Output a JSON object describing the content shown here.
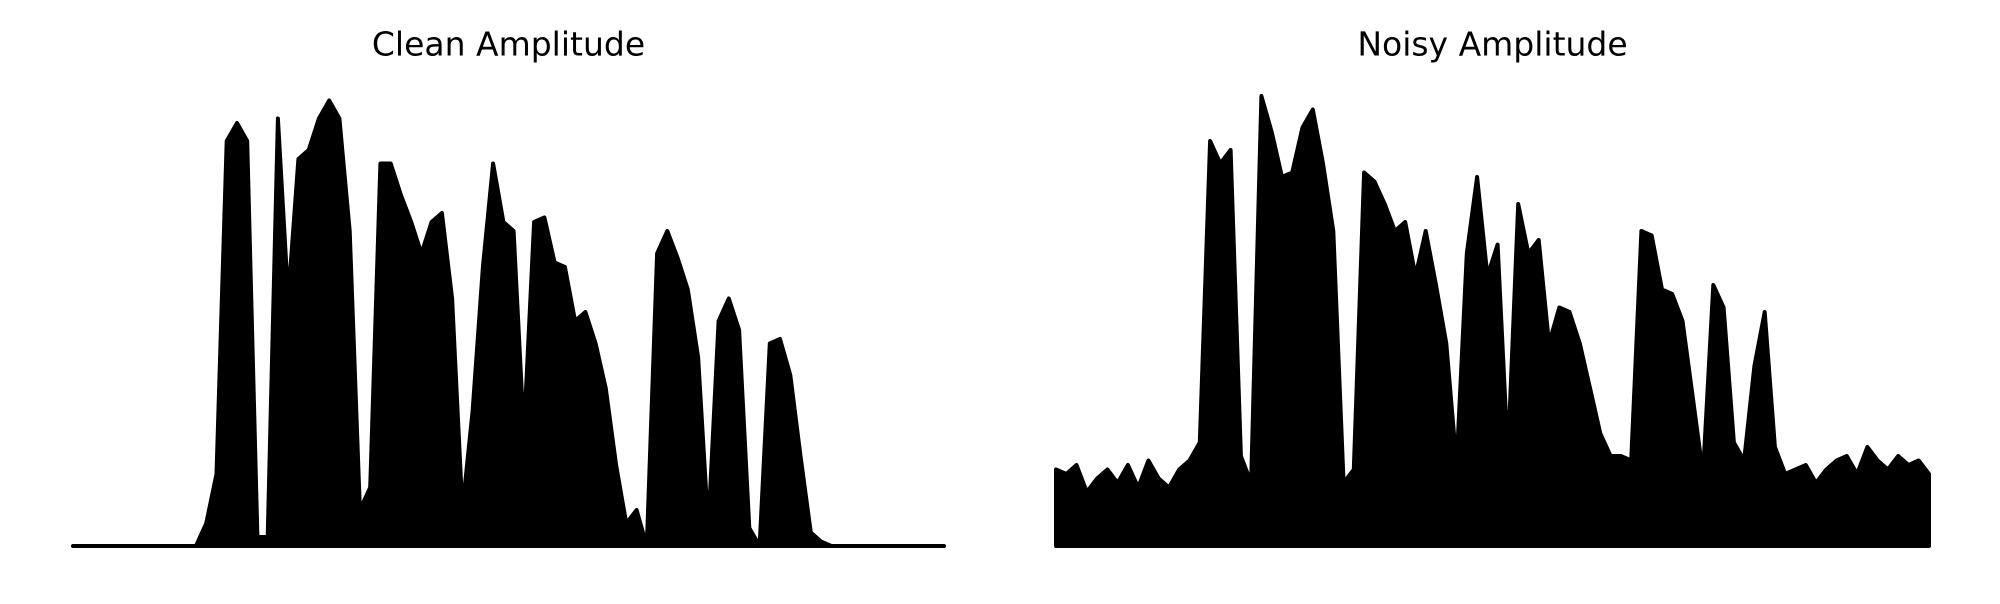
{
  "chart_data": [
    {
      "type": "area",
      "title": "Clean Amplitude",
      "color": "#000000",
      "ylim": [
        0,
        1
      ],
      "values": [
        0,
        0,
        0,
        0,
        0,
        0,
        0,
        0,
        0,
        0,
        0,
        0,
        0,
        0.05,
        0.16,
        0.9,
        0.94,
        0.9,
        0.02,
        0.02,
        0.95,
        0.55,
        0.86,
        0.88,
        0.95,
        0.99,
        0.95,
        0.7,
        0.08,
        0.13,
        0.85,
        0.85,
        0.78,
        0.72,
        0.65,
        0.72,
        0.74,
        0.55,
        0.08,
        0.3,
        0.62,
        0.85,
        0.72,
        0.7,
        0.25,
        0.72,
        0.73,
        0.63,
        0.62,
        0.5,
        0.52,
        0.45,
        0.35,
        0.18,
        0.05,
        0.08,
        0,
        0.65,
        0.7,
        0.64,
        0.57,
        0.42,
        0.04,
        0.5,
        0.55,
        0.48,
        0.04,
        0,
        0.45,
        0.46,
        0.38,
        0.2,
        0.03,
        0.01,
        0,
        0,
        0,
        0,
        0,
        0,
        0,
        0,
        0,
        0,
        0,
        0
      ]
    },
    {
      "type": "area",
      "title": "Noisy Amplitude",
      "color": "#000000",
      "ylim": [
        0,
        1
      ],
      "values": [
        0.17,
        0.16,
        0.18,
        0.12,
        0.15,
        0.17,
        0.14,
        0.18,
        0.13,
        0.19,
        0.15,
        0.13,
        0.17,
        0.19,
        0.23,
        0.9,
        0.85,
        0.88,
        0.2,
        0.14,
        1.0,
        0.92,
        0.82,
        0.83,
        0.93,
        0.97,
        0.85,
        0.7,
        0.14,
        0.17,
        0.83,
        0.81,
        0.76,
        0.7,
        0.72,
        0.6,
        0.7,
        0.58,
        0.45,
        0.18,
        0.65,
        0.82,
        0.6,
        0.67,
        0.2,
        0.76,
        0.65,
        0.68,
        0.45,
        0.53,
        0.52,
        0.45,
        0.35,
        0.25,
        0.2,
        0.2,
        0.19,
        0.7,
        0.69,
        0.57,
        0.56,
        0.5,
        0.33,
        0.16,
        0.58,
        0.53,
        0.23,
        0.19,
        0.4,
        0.52,
        0.22,
        0.16,
        0.17,
        0.18,
        0.14,
        0.17,
        0.19,
        0.2,
        0.16,
        0.22,
        0.19,
        0.17,
        0.2,
        0.18,
        0.19,
        0.16
      ]
    }
  ]
}
